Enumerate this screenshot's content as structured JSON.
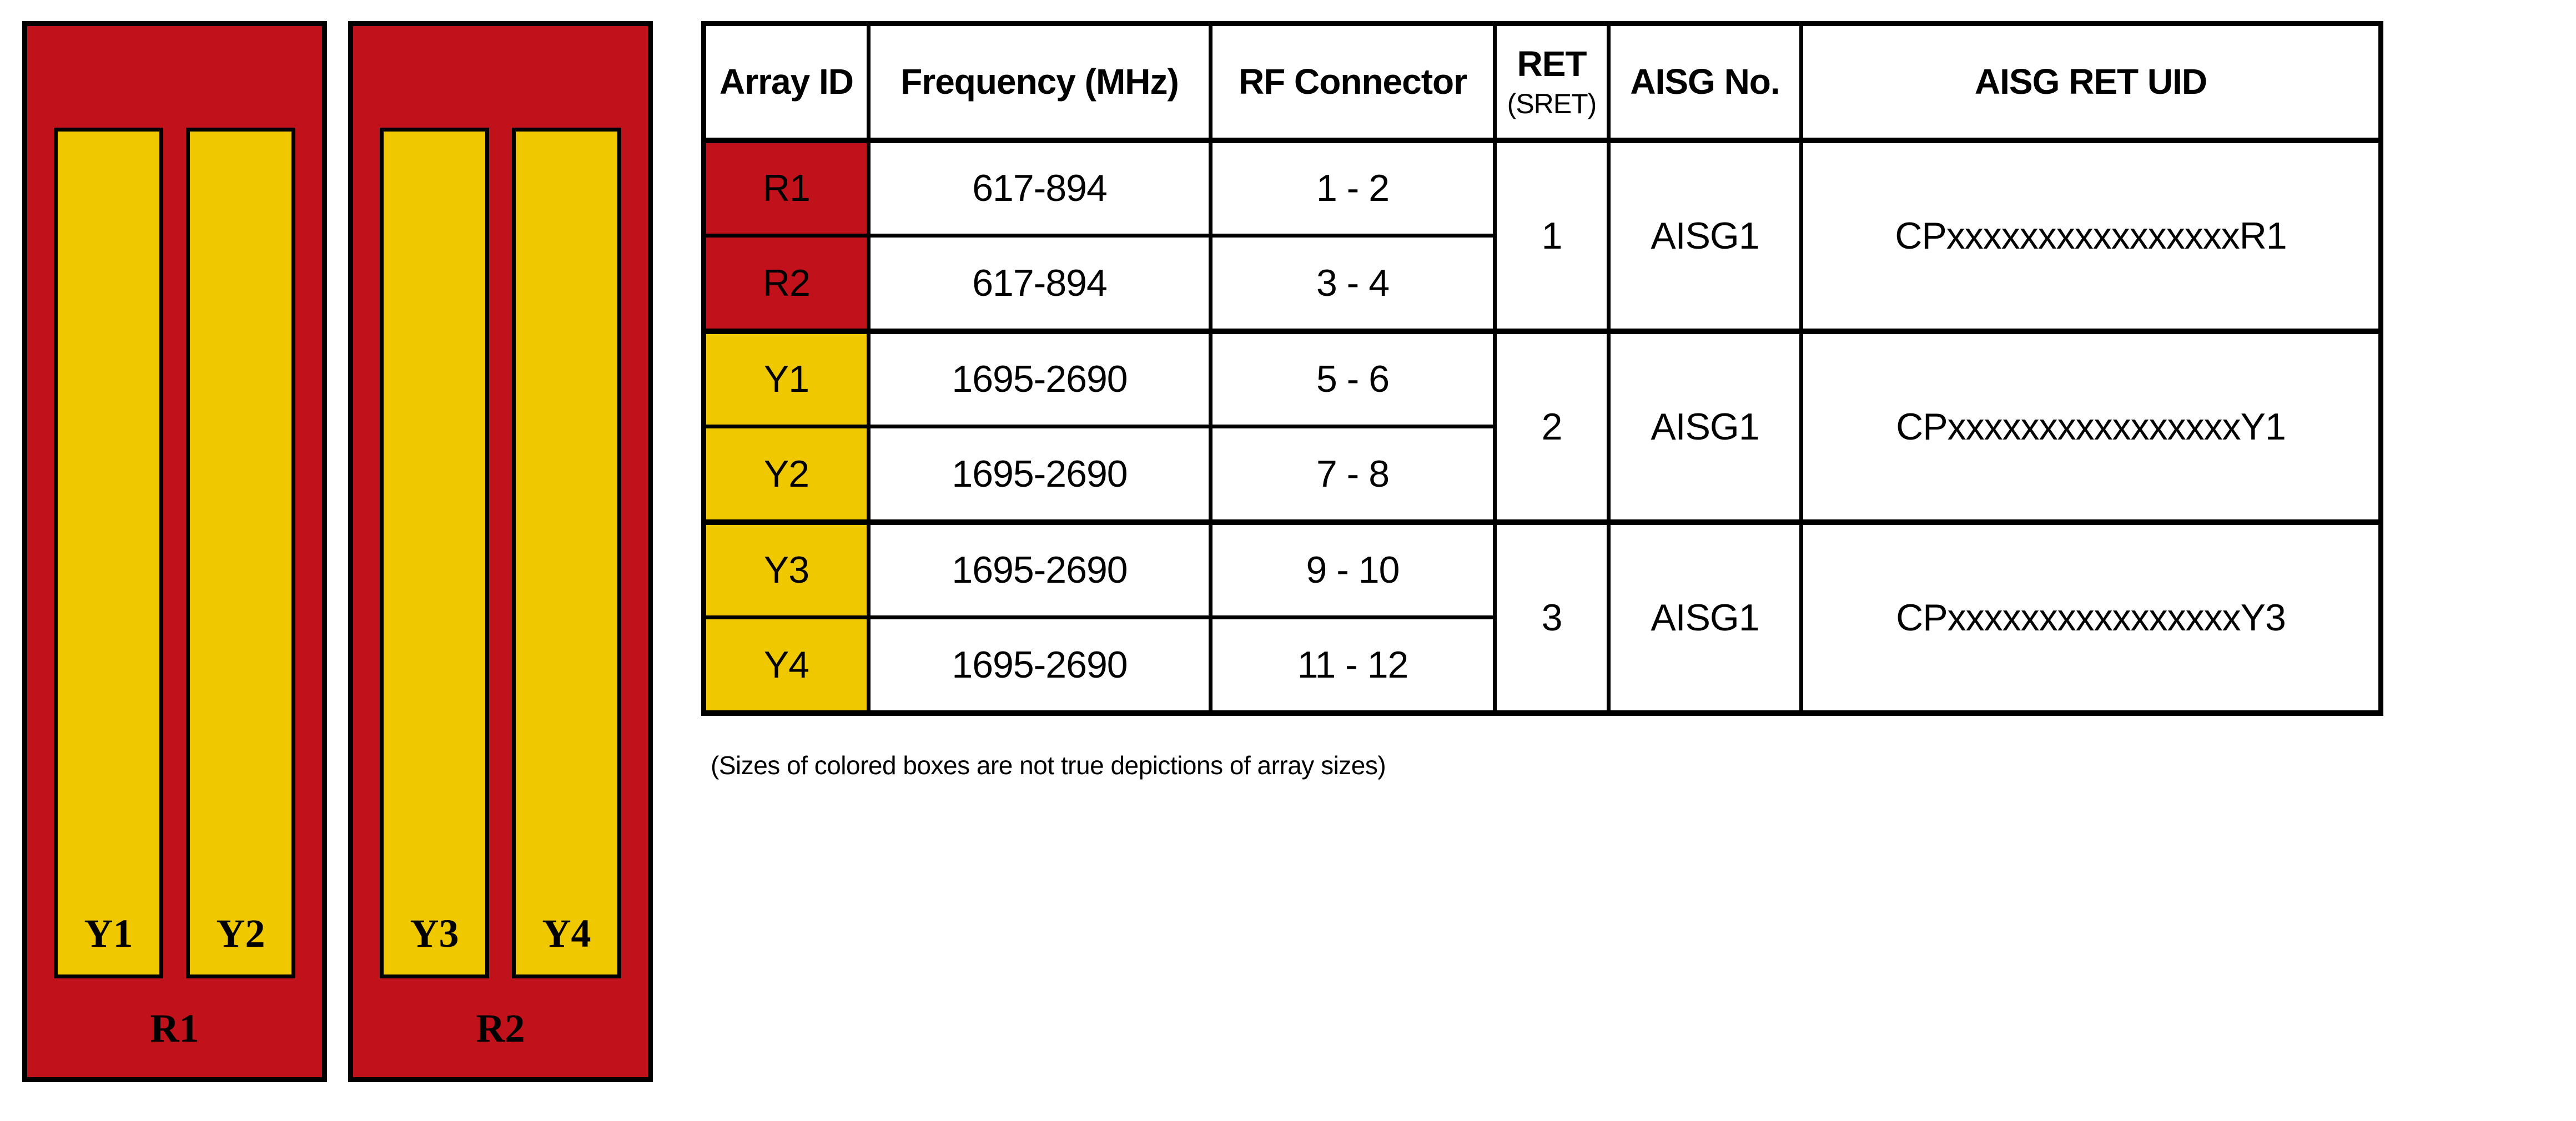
{
  "colors": {
    "red": "#C1121C",
    "yellow": "#F0C800",
    "border": "#000000",
    "background": "#FFFFFF"
  },
  "diagram": {
    "boxes": [
      {
        "label": "R1",
        "columns": [
          {
            "label": "Y1"
          },
          {
            "label": "Y2"
          }
        ]
      },
      {
        "label": "R2",
        "columns": [
          {
            "label": "Y3"
          },
          {
            "label": "Y4"
          }
        ]
      }
    ]
  },
  "table": {
    "headers": {
      "array_id": "Array ID",
      "frequency": "Frequency (MHz)",
      "rf_connector": "RF Connector",
      "ret": "RET",
      "ret_sub": "(SRET)",
      "aisg_no": "AISG No.",
      "aisg_ret_uid": "AISG RET UID"
    },
    "groups": [
      {
        "ret": "1",
        "aisg_no": "AISG1",
        "aisg_ret_uid": "CPxxxxxxxxxxxxxxxxR1",
        "rows": [
          {
            "array_id": "R1",
            "color": "red",
            "frequency": "617-894",
            "rf_connector": "1 - 2"
          },
          {
            "array_id": "R2",
            "color": "red",
            "frequency": "617-894",
            "rf_connector": "3 - 4"
          }
        ]
      },
      {
        "ret": "2",
        "aisg_no": "AISG1",
        "aisg_ret_uid": "CPxxxxxxxxxxxxxxxxY1",
        "rows": [
          {
            "array_id": "Y1",
            "color": "yellow",
            "frequency": "1695-2690",
            "rf_connector": "5 - 6"
          },
          {
            "array_id": "Y2",
            "color": "yellow",
            "frequency": "1695-2690",
            "rf_connector": "7 - 8"
          }
        ]
      },
      {
        "ret": "3",
        "aisg_no": "AISG1",
        "aisg_ret_uid": "CPxxxxxxxxxxxxxxxxY3",
        "rows": [
          {
            "array_id": "Y3",
            "color": "yellow",
            "frequency": "1695-2690",
            "rf_connector": "9 - 10"
          },
          {
            "array_id": "Y4",
            "color": "yellow",
            "frequency": "1695-2690",
            "rf_connector": "11 - 12"
          }
        ]
      }
    ]
  },
  "footnote": "(Sizes of colored boxes are not true depictions of array sizes)"
}
